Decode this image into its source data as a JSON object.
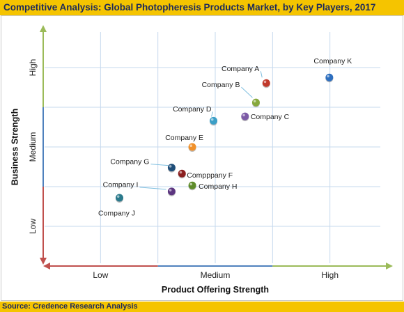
{
  "title": "Competitive Analysis: Global Photopheresis Products Market, by Key Players, 2017",
  "source": "Source: Credence Research Analysis",
  "colors": {
    "banner": "#f5c400",
    "banner_text": "#1d2a5a",
    "axis_x_low": "#c0504d",
    "axis_x_mid": "#4f81bd",
    "axis_x_high": "#9bbb59",
    "grid": "#c6d9ee"
  },
  "chart_data": {
    "type": "scatter",
    "xlabel": "Product Offering Strength",
    "ylabel": "Business Strength",
    "x_ticks": [
      "Low",
      "Medium",
      "High"
    ],
    "y_ticks": [
      "Low",
      "Medium",
      "High"
    ],
    "xlim": [
      0,
      6
    ],
    "ylim": [
      0,
      6
    ],
    "grid": true,
    "points": [
      {
        "label": "Company A",
        "x": 3.89,
        "y": 4.61,
        "color": "#c0392b"
      },
      {
        "label": "Company K",
        "x": 4.99,
        "y": 4.75,
        "color": "#2e6fbf"
      },
      {
        "label": "Company B",
        "x": 3.71,
        "y": 4.12,
        "color": "#86a83c"
      },
      {
        "label": "Company C",
        "x": 3.52,
        "y": 3.77,
        "color": "#7c5aa6"
      },
      {
        "label": "Company D",
        "x": 2.97,
        "y": 3.66,
        "color": "#3b9fc7"
      },
      {
        "label": "Company E",
        "x": 2.6,
        "y": 3.0,
        "color": "#f0902a"
      },
      {
        "label": "Company G",
        "x": 2.24,
        "y": 2.48,
        "color": "#1f4e79"
      },
      {
        "label": "Compppany F",
        "x": 2.42,
        "y": 2.33,
        "color": "#8b2020"
      },
      {
        "label": "Company H",
        "x": 2.6,
        "y": 2.03,
        "color": "#5e8c2a"
      },
      {
        "label": "Company I",
        "x": 2.24,
        "y": 1.88,
        "color": "#5c3580"
      },
      {
        "label": "Company J",
        "x": 1.33,
        "y": 1.72,
        "color": "#2b7a8c"
      }
    ]
  }
}
